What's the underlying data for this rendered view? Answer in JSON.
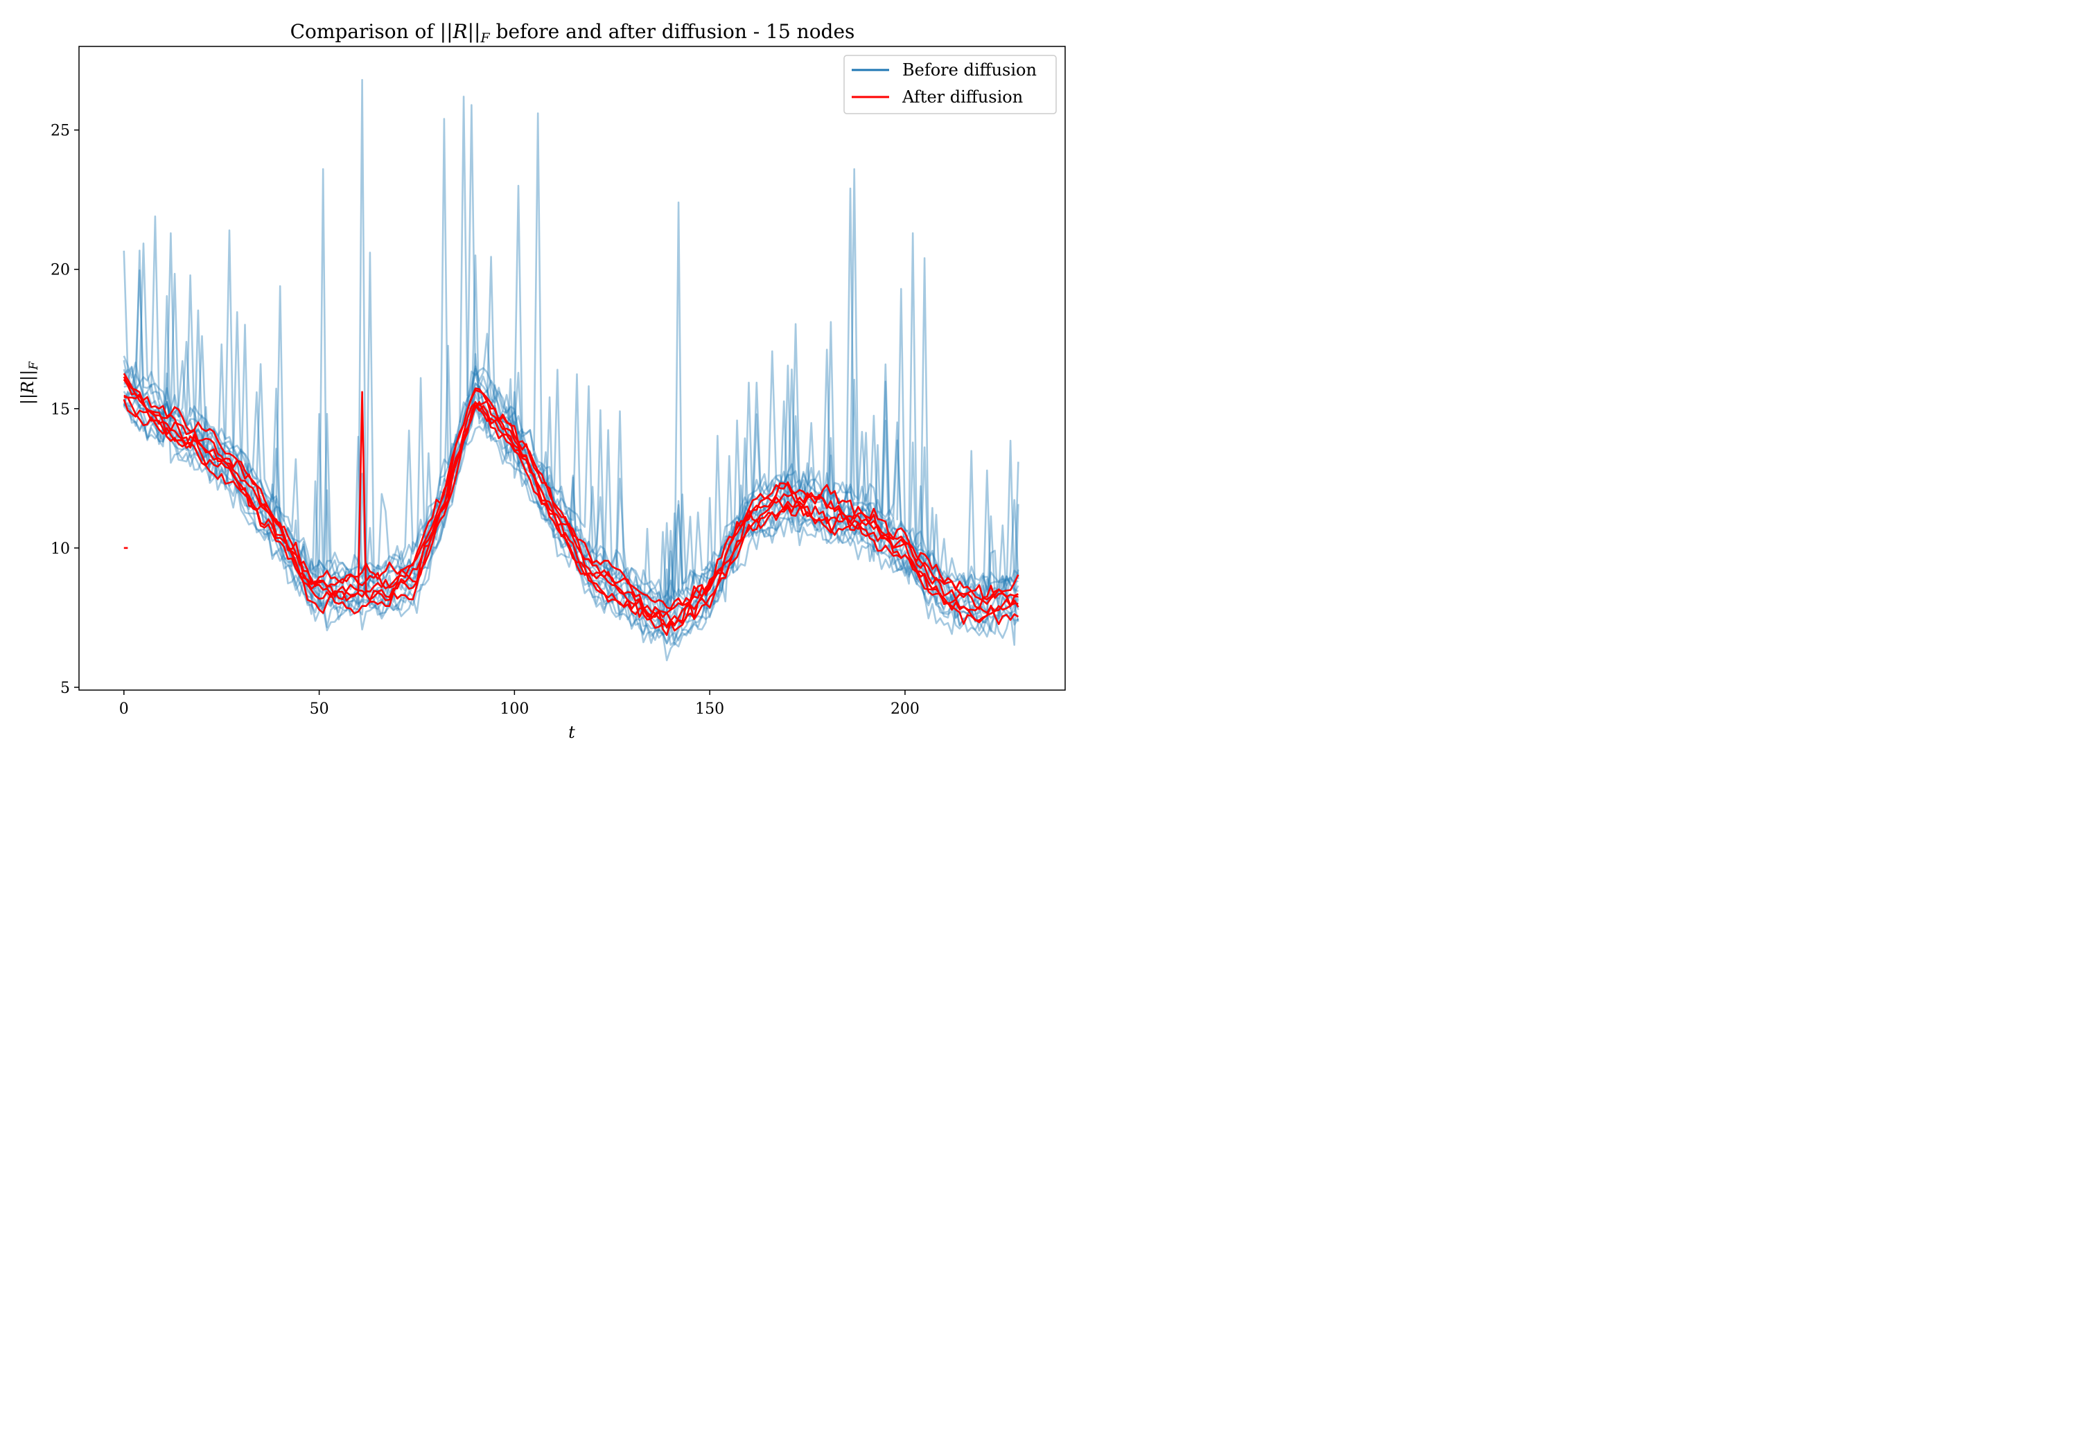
{
  "chart_data": {
    "type": "line",
    "title_prefix": "Comparison of ",
    "title_symbol": "||R||",
    "title_subscript": "F",
    "title_suffix": " before and after diffusion - 15 nodes",
    "xlabel": "t",
    "ylabel_symbol": "||R||",
    "ylabel_subscript": "F",
    "xlim": [
      -11.5,
      241
    ],
    "ylim": [
      4.9,
      28
    ],
    "xticks": [
      0,
      50,
      100,
      150,
      200
    ],
    "yticks": [
      5,
      10,
      15,
      20,
      25
    ],
    "grid": false,
    "legend_position": "top-right",
    "legend": [
      {
        "label": "Before diffusion",
        "color": "#1f77b4"
      },
      {
        "label": "After diffusion",
        "color": "#ff0000"
      }
    ],
    "n_steps": 230,
    "series_groups": [
      {
        "name": "Before diffusion",
        "color": "#1f77b4",
        "opacity": 0.4,
        "count": 15
      },
      {
        "name": "After diffusion",
        "color": "#ff0000",
        "opacity": 1.0,
        "count": 6
      }
    ],
    "baseline_trend": {
      "x": [
        0,
        10,
        20,
        30,
        40,
        48,
        58,
        66,
        75,
        82,
        90,
        100,
        110,
        120,
        130,
        139,
        150,
        160,
        170,
        180,
        190,
        200,
        210,
        220,
        229
      ],
      "y": [
        15.8,
        14.6,
        13.8,
        12.6,
        10.6,
        8.6,
        8.6,
        8.6,
        9.2,
        11.8,
        15.6,
        14.0,
        11.4,
        9.2,
        8.3,
        7.4,
        8.6,
        11.2,
        11.9,
        11.4,
        11.0,
        10.0,
        8.4,
        8.0,
        8.3
      ]
    },
    "spike_events": [
      {
        "x": 51,
        "y": 23.6
      },
      {
        "x": 61,
        "y": 26.8
      },
      {
        "x": 63,
        "y": 20.6
      },
      {
        "x": 82,
        "y": 25.4
      },
      {
        "x": 87,
        "y": 26.2
      },
      {
        "x": 89,
        "y": 25.9
      },
      {
        "x": 101,
        "y": 23.0
      },
      {
        "x": 106,
        "y": 25.6
      },
      {
        "x": 142,
        "y": 22.4
      },
      {
        "x": 186,
        "y": 22.9
      },
      {
        "x": 187,
        "y": 23.6
      },
      {
        "x": 199,
        "y": 19.3
      },
      {
        "x": 202,
        "y": 21.3
      },
      {
        "x": 205,
        "y": 20.4
      },
      {
        "x": 8,
        "y": 21.9
      },
      {
        "x": 12,
        "y": 21.3
      },
      {
        "x": 27,
        "y": 21.4
      },
      {
        "x": 40,
        "y": 19.4
      }
    ],
    "initial_marker": {
      "x": [
        0,
        1
      ],
      "y": [
        10.0,
        10.0
      ],
      "color": "#ff0000"
    },
    "red_spike": {
      "x": 61,
      "y": 15.6
    }
  }
}
